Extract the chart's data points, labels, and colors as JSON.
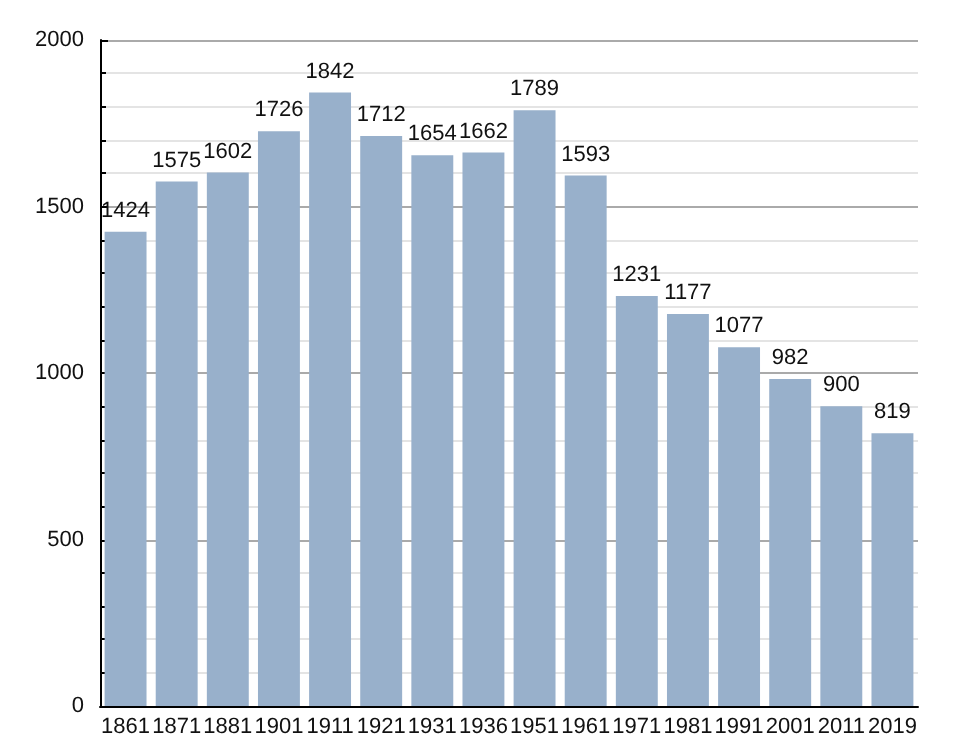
{
  "chart_data": {
    "type": "bar",
    "categories": [
      "1861",
      "1871",
      "1881",
      "1901",
      "1911",
      "1921",
      "1931",
      "1936",
      "1951",
      "1961",
      "1971",
      "1981",
      "1991",
      "2001",
      "2011",
      "2019"
    ],
    "values": [
      1424,
      1575,
      1602,
      1726,
      1842,
      1712,
      1654,
      1662,
      1789,
      1593,
      1231,
      1177,
      1077,
      982,
      900,
      819
    ],
    "color": "#98b0cb",
    "ylim": [
      0,
      2000
    ],
    "yticks": [
      0,
      500,
      1000,
      1500,
      2000
    ],
    "grid": "y",
    "data_labels": true
  }
}
